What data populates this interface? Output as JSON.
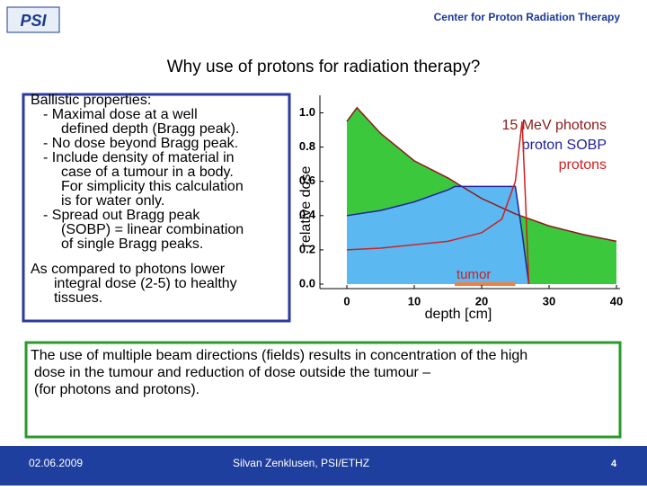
{
  "header": {
    "logo": "PSI",
    "right": "Center for Proton Radiation Therapy"
  },
  "title": "Why use of protons for radiation therapy?",
  "left_box": {
    "lines": [
      "Ballistic properties:",
      "- Maximal dose at a well",
      "defined depth (Bragg peak).",
      "- No dose beyond Bragg peak.",
      "- Include density of material in",
      "case of a tumour in a  body.",
      "For simplicity this calculation",
      "is for water only.",
      "- Spread out Bragg peak",
      "(SOBP) = linear combination",
      "of single Bragg peaks."
    ],
    "lines2": [
      "As compared to photons lower",
      "integral dose (2-5) to healthy",
      "tissues."
    ]
  },
  "chart_data": {
    "type": "line",
    "xlabel": "depth  [cm]",
    "ylabel": "relative dose",
    "xlim": [
      0,
      40
    ],
    "xticks": [
      0,
      10,
      20,
      30,
      40
    ],
    "ylim": [
      0,
      1.05
    ],
    "yticks": [
      {
        "value": 0,
        "label": "0.0"
      },
      {
        "value": 0.2,
        "label": "0.2"
      },
      {
        "value": 0.4,
        "label": "0.4"
      },
      {
        "value": 0.6,
        "label": "0.6"
      },
      {
        "value": 0.8,
        "label": "0.8"
      },
      {
        "value": 1,
        "label": "1.0"
      }
    ],
    "series": [
      {
        "name": "15 MeV photons",
        "color": "#8b1a1a",
        "fill": "#3cc83c",
        "x": [
          0,
          1.5,
          5,
          10,
          15,
          20,
          25,
          30,
          35,
          40
        ],
        "values": [
          0.95,
          1.03,
          0.88,
          0.72,
          0.62,
          0.5,
          0.41,
          0.34,
          0.29,
          0.25
        ]
      },
      {
        "name": "proton SOBP",
        "color": "#2020a0",
        "fill": "#5bb8f0",
        "x": [
          0,
          5,
          10,
          15,
          16,
          25,
          26,
          27
        ],
        "values": [
          0.4,
          0.43,
          0.48,
          0.55,
          0.57,
          0.57,
          0.3,
          0
        ]
      },
      {
        "name": "protons",
        "color": "#d02020",
        "x": [
          0,
          5,
          10,
          15,
          20,
          23,
          25,
          26,
          26.5,
          27
        ],
        "values": [
          0.2,
          0.21,
          0.23,
          0.25,
          0.3,
          0.38,
          0.6,
          0.95,
          0.5,
          0
        ]
      }
    ],
    "annotation": {
      "text": "tumor",
      "range": [
        16,
        25
      ],
      "color": "#f08040"
    }
  },
  "bottom_box": {
    "lines": [
      "The use of multiple beam directions (fields) results in concentration of the high",
      "dose in the tumour and reduction of dose outside the tumour –",
      "(for photons and protons)."
    ]
  },
  "footer": {
    "date": "02.06.2009",
    "author": "Silvan Zenklusen, PSI/ETHZ",
    "page": "4"
  }
}
